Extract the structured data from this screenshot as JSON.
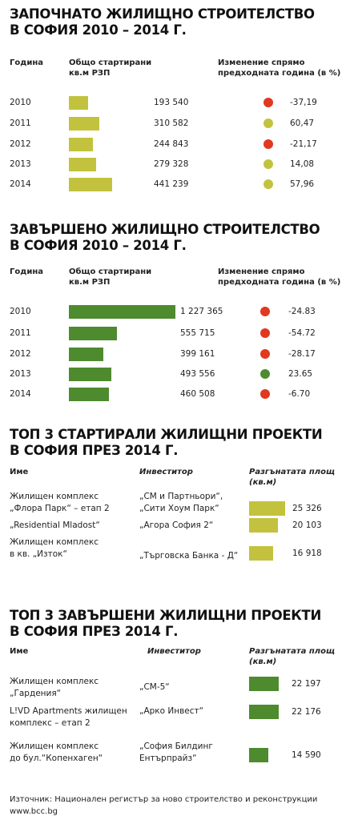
{
  "colors": {
    "yellow_green": "#c2c23f",
    "dark_green": "#4e8a2e",
    "red": "#e0391f"
  },
  "s1": {
    "title_line1": "ЗАПОЧНАТО ЖИЛИЩНО СТРОИТЕЛСТВО",
    "title_line2": "В СОФИЯ 2010 – 2014 Г.",
    "h_year": "Година",
    "h_total1": "Общо стартирани",
    "h_total2": "кв.м РЗП",
    "h_change1": "Изменение спрямо",
    "h_change2": "предходната година (в %)"
  },
  "s2": {
    "title_line1": "ЗАВЪРШЕНО ЖИЛИЩНО СТРОИТЕЛСТВО",
    "title_line2": "В СОФИЯ 2010 – 2014 Г.",
    "h_year": "Година",
    "h_total1": "Общо стартирани",
    "h_total2": "кв.м РЗП",
    "h_change1": "Изменение спрямо",
    "h_change2": "предходната година (в %)"
  },
  "s3": {
    "title_line1": "ТОП 3 СТАРТИРАЛИ ЖИЛИЩНИ ПРОЕКТИ",
    "title_line2": "В СОФИЯ ПРЕЗ 2014 Г.",
    "h_name": "Име",
    "h_investor": "Инвеститор",
    "h_area1": "Разгънатата площ",
    "h_area2": "(кв.м)"
  },
  "s4": {
    "title_line1": "ТОП 3 ЗАВЪРШЕНИ ЖИЛИЩНИ ПРОЕКТИ",
    "title_line2": "В СОФИЯ ПРЕЗ 2014 Г.",
    "h_name": "Име",
    "h_investor": "Инвеститор",
    "h_area1": "Разгънатата площ",
    "h_area2": "(кв.м)"
  },
  "footer": {
    "source": "Източник: Национален регистър за ново строителство и реконструкции",
    "site": "www.bcc.bg"
  },
  "chart_data": [
    {
      "type": "table",
      "title": "ЗАПОЧНАТО ЖИЛИЩНО СТРОИТЕЛСТВО В СОФИЯ 2010 – 2014 Г.",
      "categories": [
        "2010",
        "2011",
        "2012",
        "2013",
        "2014"
      ],
      "values": [
        193540,
        310582,
        244843,
        279328,
        441239
      ],
      "labels": [
        "193 540",
        "310 582",
        "244 843",
        "279 328",
        "441 239"
      ],
      "change_labels": [
        "-37,19",
        "60,47",
        "-21,17",
        "14,08",
        "57,96"
      ],
      "change_colors": [
        "#e0391f",
        "#c2c23f",
        "#e0391f",
        "#c2c23f",
        "#c2c23f"
      ],
      "bar_color": "#c2c23f"
    },
    {
      "type": "table",
      "title": "ЗАВЪРШЕНО ЖИЛИЩНО СТРОИТЕЛСТВО В СОФИЯ 2010 – 2014 Г.",
      "categories": [
        "2010",
        "2011",
        "2012",
        "2013",
        "2014"
      ],
      "values": [
        1227365,
        555715,
        399161,
        493556,
        460508
      ],
      "labels": [
        "1 227 365",
        "555 715",
        "399 161",
        "493 556",
        "460 508"
      ],
      "change_labels": [
        "-24.83",
        "-54.72",
        "-28.17",
        "23.65",
        "-6.70"
      ],
      "change_colors": [
        "#e0391f",
        "#e0391f",
        "#e0391f",
        "#4e8a2e",
        "#e0391f"
      ],
      "bar_color": "#4e8a2e"
    },
    {
      "type": "table",
      "title": "ТОП 3 СТАРТИРАЛИ ЖИЛИЩНИ ПРОЕКТИ В СОФИЯ ПРЕЗ 2014 Г.",
      "rows": [
        {
          "name": [
            "Жилищен комплекс",
            "„Флора Парк“ – етап 2"
          ],
          "investor": [
            "„СМ и Партньори“,",
            "„Сити Хоум Парк“"
          ],
          "value": 25326,
          "label": "25 326"
        },
        {
          "name": [
            "„Residential Mladost“"
          ],
          "investor": [
            "„Агора София 2“"
          ],
          "value": 20103,
          "label": "20 103"
        },
        {
          "name": [
            "Жилищен комплекс",
            "в кв. „Изток“"
          ],
          "investor": [
            "„Търговска Банка - Д“"
          ],
          "value": 16918,
          "label": "16 918"
        }
      ],
      "bar_color": "#c2c23f"
    },
    {
      "type": "table",
      "title": "ТОП 3 ЗАВЪРШЕНИ ЖИЛИЩНИ ПРОЕКТИ В СОФИЯ ПРЕЗ 2014 Г.",
      "rows": [
        {
          "name": [
            "Жилищен комплекс",
            "„Гардения“"
          ],
          "investor": [
            "„СМ-5“"
          ],
          "value": 22197,
          "label": "22 197"
        },
        {
          "name": [
            "L!VD Apartments жилищен",
            "комплекс – етап 2"
          ],
          "investor": [
            "„Арко Инвест“"
          ],
          "value": 22176,
          "label": "22 176"
        },
        {
          "name": [
            "Жилищен комплекс",
            "до бул.“Копенхаген“"
          ],
          "investor": [
            "„София Билдинг",
            "Ентърпрайз“"
          ],
          "value": 14590,
          "label": "14 590"
        }
      ],
      "bar_color": "#4e8a2e"
    }
  ]
}
